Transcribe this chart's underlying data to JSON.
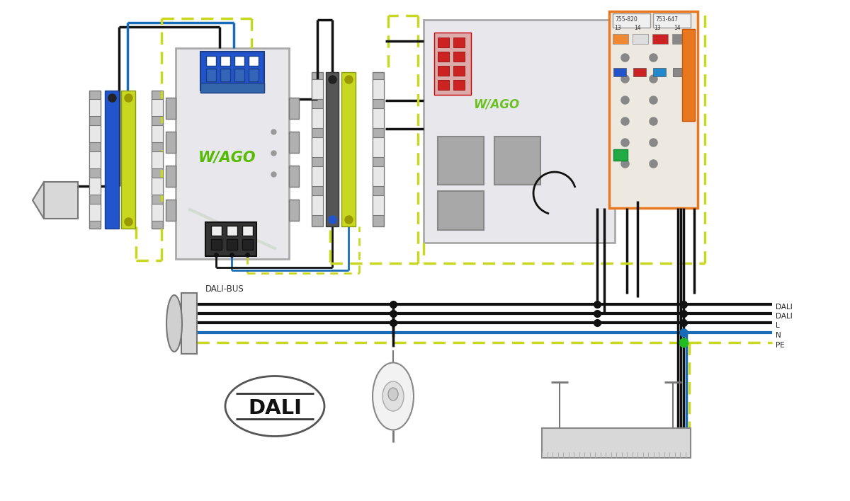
{
  "bg_color": "#ffffff",
  "wire_colors": {
    "black": "#111111",
    "blue": "#1a6bb5",
    "yellow_green": "#c8d820",
    "orange": "#e87820",
    "red": "#cc2222",
    "gray": "#a0a0a0",
    "light_gray": "#d8d8d8",
    "mid_gray": "#b0b0b0",
    "dark_gray": "#777777",
    "wago_green": "#55bb00",
    "white": "#ffffff",
    "panel_bg": "#e8e8ec",
    "blue_conn": "#2255cc",
    "green_dot": "#22bb22"
  },
  "labels": {
    "dali_bus": "DALI-BUS",
    "dali1": "DALI",
    "dali2": "DALI",
    "L": "L",
    "N": "N",
    "PE": "PE",
    "dali_logo": "DALI",
    "wago": "W/AGO",
    "mod1": "755-820",
    "mod2": "753-647"
  }
}
